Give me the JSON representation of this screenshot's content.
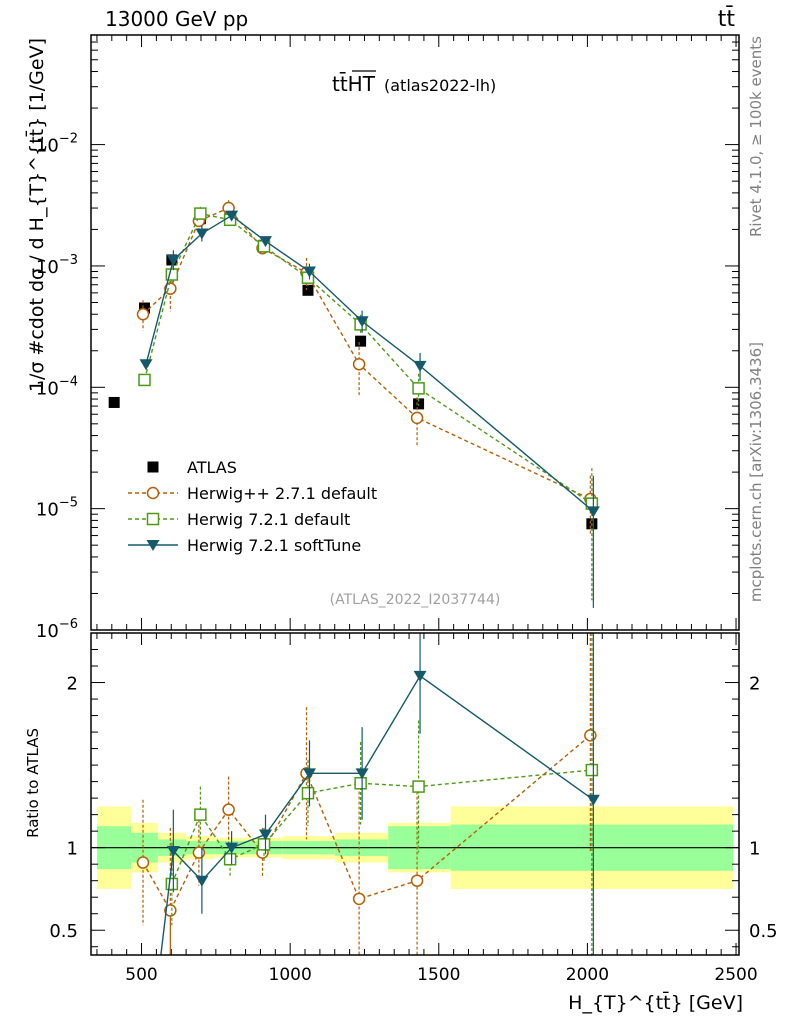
{
  "header": {
    "left": "13000 GeV pp",
    "right": "tt̄"
  },
  "side_labels": {
    "rivet": "Rivet 4.1.0, ≥ 100k events",
    "mcplots": "mcplots.cern.ch [arXiv:1306.3436]"
  },
  "chart_data": {
    "type": "scatter",
    "title_main": "tt̄HT",
    "title_sub": "(atlas2022-lh)",
    "analysis_id": "(ATLAS_2022_I2037744)",
    "ylabel": "1/σ #cdot dσ / d H_{T}^{tt̄} [1/GeV]",
    "xlabel": "H_{T}^{tt̄} [GeV]",
    "ratio_ylabel": "Ratio to ATLAS",
    "xlim": [
      330,
      2510
    ],
    "ylim_log": [
      1e-06,
      0.08
    ],
    "ratio_ylim": [
      0.35,
      2.3
    ],
    "x_ticks": [
      500,
      1000,
      1500,
      2000,
      2500
    ],
    "x_tick_labels": [
      "500",
      "1000",
      "1500",
      "2000",
      "2500"
    ],
    "y_tick_labels": [
      {
        "base": "10",
        "exp": "−2"
      },
      {
        "base": "10",
        "exp": "−3"
      },
      {
        "base": "10",
        "exp": "−4"
      },
      {
        "base": "10",
        "exp": "−5"
      },
      {
        "base": "10",
        "exp": "−6"
      }
    ],
    "ratio_tick_labels": [
      "2",
      "1",
      "0.5"
    ],
    "bin_edges": [
      350,
      465,
      555,
      650,
      745,
      855,
      975,
      1150,
      1330,
      1540,
      2490
    ],
    "x": [
      408,
      510,
      602,
      698,
      798,
      912,
      1060,
      1237,
      1432,
      2015
    ],
    "series": [
      {
        "name": "ATLAS",
        "color": "#000000",
        "marker": "filled-square",
        "values": [
          7.5e-05,
          0.00045,
          0.00112,
          0.00245,
          0.00255,
          0.00148,
          0.00063,
          0.00024,
          7.3e-05,
          7.5e-06
        ],
        "ratio": [
          1,
          1,
          1,
          1,
          1,
          1,
          1,
          1,
          1,
          1
        ]
      },
      {
        "name": "Herwig++ 2.7.1 default",
        "color": "#b45f06",
        "marker": "open-circle",
        "line": "dashed",
        "values": [
          null,
          0.0004,
          0.00065,
          0.00235,
          0.003,
          0.0014,
          0.00088,
          0.000155,
          5.6e-05,
          1.2e-05
        ],
        "ratio": [
          null,
          0.91,
          0.62,
          0.97,
          1.23,
          0.97,
          1.45,
          0.69,
          0.8,
          1.68
        ],
        "ratio_err": [
          null,
          0.38,
          0.5,
          0.2,
          0.2,
          0.15,
          0.4,
          0.65,
          0.6,
          0.7
        ]
      },
      {
        "name": "Herwig 7.2.1 default",
        "color": "#4d9a17",
        "marker": "open-square",
        "line": "dashed",
        "values": [
          null,
          0.000115,
          0.00085,
          0.0027,
          0.0024,
          0.00145,
          0.0008,
          0.00033,
          9.8e-05,
          1.1e-05
        ],
        "ratio": [
          null,
          null,
          0.78,
          1.2,
          0.93,
          1.02,
          1.33,
          1.39,
          1.37,
          1.47
        ],
        "ratio_err": [
          null,
          null,
          0.25,
          0.17,
          0.1,
          0.1,
          0.2,
          0.25,
          0.4,
          1.2
        ]
      },
      {
        "name": "Herwig 7.2.1 softTune",
        "color": "#155a6c",
        "marker": "filled-triangle-down",
        "line": "solid",
        "values": [
          null,
          0.000155,
          0.00112,
          0.00185,
          0.0026,
          0.0016,
          0.0009,
          0.00035,
          0.00015,
          9.5e-06
        ],
        "ratio": [
          null,
          null,
          0.98,
          0.8,
          1.0,
          1.08,
          1.45,
          1.45,
          2.04,
          1.29
        ],
        "ratio_err": [
          null,
          null,
          0.25,
          0.2,
          0.1,
          0.12,
          0.2,
          0.28,
          0.35,
          1.2
        ]
      }
    ],
    "band_inner": [
      0.13,
      0.09,
      0.05,
      0.04,
      0.04,
      0.04,
      0.04,
      0.05,
      0.13,
      0.14
    ],
    "band_outer": [
      0.25,
      0.15,
      0.09,
      0.07,
      0.06,
      0.06,
      0.07,
      0.09,
      0.15,
      0.25
    ],
    "band_inner_color": "#99ff99",
    "band_outer_color": "#ffff99"
  }
}
